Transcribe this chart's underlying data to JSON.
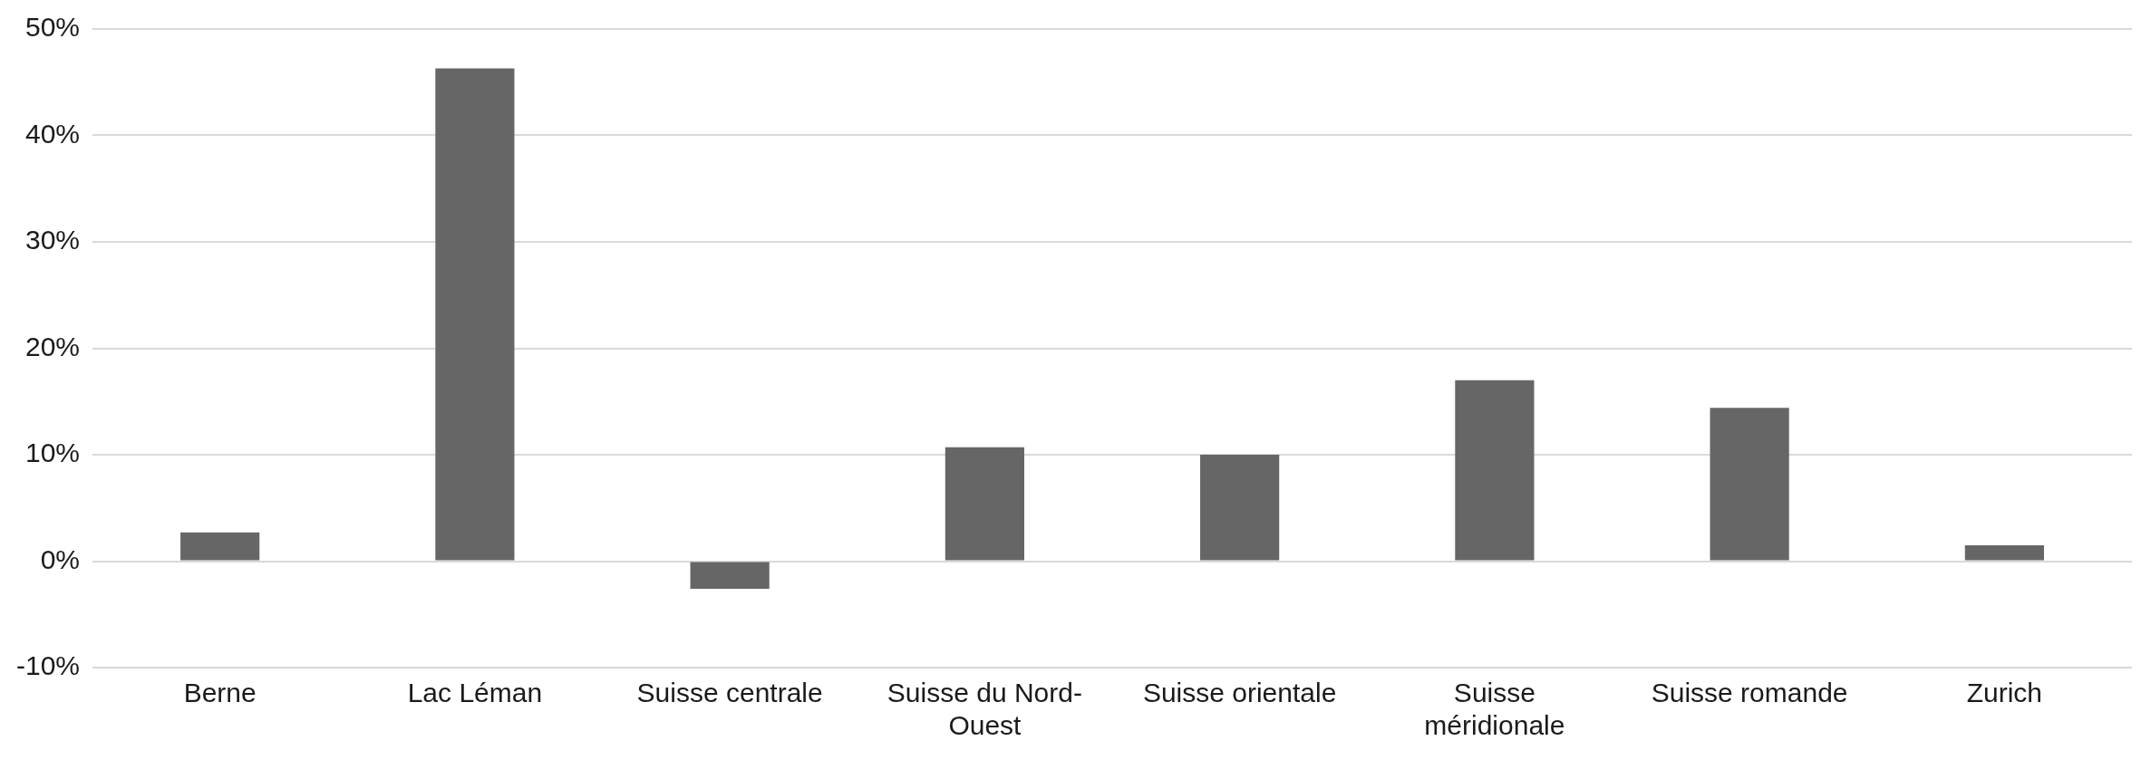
{
  "chart_data": {
    "type": "bar",
    "categories": [
      "Berne",
      "Lac Léman",
      "Suisse centrale",
      "Suisse du Nord-Ouest",
      "Suisse orientale",
      "Suisse méridionale",
      "Suisse romande",
      "Zurich"
    ],
    "values": [
      2.7,
      46.3,
      -2.6,
      10.7,
      10.0,
      17.0,
      14.4,
      1.5
    ],
    "color": "#666666",
    "ylim": [
      -10,
      50
    ],
    "yticks": [
      {
        "value": -10,
        "label": "-10%"
      },
      {
        "value": 0,
        "label": "0%"
      },
      {
        "value": 10,
        "label": "10%"
      },
      {
        "value": 20,
        "label": "20%"
      },
      {
        "value": 30,
        "label": "30%"
      },
      {
        "value": 40,
        "label": "40%"
      },
      {
        "value": 50,
        "label": "50%"
      }
    ],
    "grid": "y"
  }
}
